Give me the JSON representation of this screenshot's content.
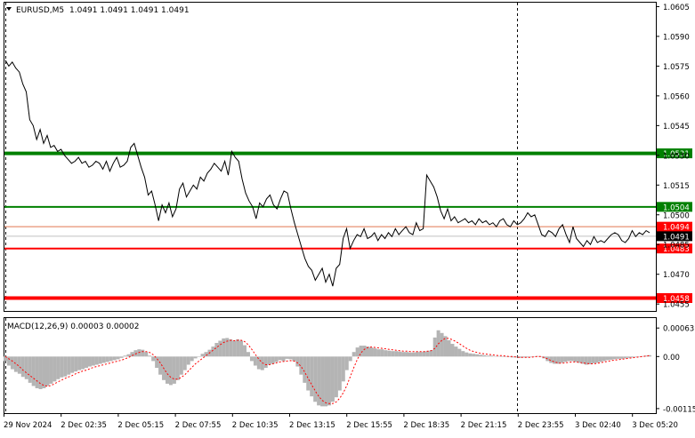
{
  "header": {
    "symbol": "EURUSD,M5",
    "ohlc": "1.0491 1.0491 1.0491 1.0491"
  },
  "colors": {
    "price_line": "#000000",
    "grid": "#c8c8c8",
    "resistance": "#008000",
    "support": "#ff0000",
    "bid_line": "#c0c0c0",
    "ask_line": "#e07850",
    "histogram": "#b4b4b4",
    "signal": "#ff0000",
    "axis_text": "#000000"
  },
  "chart_data": [
    {
      "type": "line",
      "panel": "price",
      "ylim": [
        1.04515,
        1.0607
      ],
      "y_ticks": [
        "1.0605",
        "1.0590",
        "1.0575",
        "1.0560",
        "1.0545",
        "1.0530",
        "1.0515",
        "1.0500",
        "1.0485",
        "1.0470",
        "1.0455"
      ],
      "x_tick_labels": [
        "29 Nov 2024",
        "2 Dec 02:35",
        "2 Dec 05:15",
        "2 Dec 07:55",
        "2 Dec 10:35",
        "2 Dec 13:15",
        "2 Dec 15:55",
        "2 Dec 18:35",
        "2 Dec 21:15",
        "2 Dec 23:55",
        "3 Dec 02:40",
        "3 Dec 05:20"
      ],
      "period_separators": [
        "2 Dec 00:00",
        "3 Dec 00:00"
      ],
      "series": [
        {
          "values": [
            1.0578,
            1.0575,
            1.0577,
            1.0574,
            1.0572,
            1.0566,
            1.0562,
            1.0548,
            1.0545,
            1.0538,
            1.0543,
            1.0536,
            1.054,
            1.0534,
            1.0535,
            1.0532,
            1.0533,
            1.053,
            1.0528,
            1.0526,
            1.0527,
            1.0529,
            1.0526,
            1.0527,
            1.0524,
            1.0525,
            1.0527,
            1.0526,
            1.0523,
            1.0527,
            1.0522,
            1.0526,
            1.0529,
            1.0524,
            1.0525,
            1.0527,
            1.0534,
            1.0536,
            1.053,
            1.0524,
            1.0519,
            1.051,
            1.0512,
            1.0505,
            1.0497,
            1.0505,
            1.0501,
            1.0506,
            1.0499,
            1.0503,
            1.0513,
            1.0516,
            1.0509,
            1.0512,
            1.0515,
            1.0513,
            1.0519,
            1.0517,
            1.0521,
            1.0523,
            1.0526,
            1.0524,
            1.0522,
            1.0527,
            1.052,
            1.0532,
            1.0529,
            1.0527,
            1.0518,
            1.0511,
            1.0507,
            1.0504,
            1.0498,
            1.0506,
            1.0504,
            1.0508,
            1.051,
            1.0505,
            1.0503,
            1.0508,
            1.0512,
            1.0511,
            1.0503,
            1.0496,
            1.049,
            1.0484,
            1.0478,
            1.0474,
            1.0472,
            1.0467,
            1.047,
            1.0473,
            1.0466,
            1.047,
            1.0464,
            1.0473,
            1.0475,
            1.0488,
            1.0493,
            1.0483,
            1.0487,
            1.049,
            1.0489,
            1.0493,
            1.0488,
            1.0489,
            1.0491,
            1.0487,
            1.049,
            1.0488,
            1.0491,
            1.0489,
            1.0493,
            1.049,
            1.0492,
            1.0494,
            1.0491,
            1.049,
            1.0496,
            1.0492,
            1.0493,
            1.052,
            1.0517,
            1.0514,
            1.0509,
            1.0502,
            1.0498,
            1.0503,
            1.0497,
            1.0499,
            1.0496,
            1.0497,
            1.0498,
            1.0496,
            1.0497,
            1.0495,
            1.0498,
            1.0496,
            1.0497,
            1.0495,
            1.0496,
            1.0494,
            1.0497,
            1.0498,
            1.0495,
            1.0494,
            1.0497,
            1.0495,
            1.0496,
            1.0498,
            1.0501,
            1.0499,
            1.05,
            1.0495,
            1.049,
            1.0489,
            1.0492,
            1.0491,
            1.0489,
            1.0493,
            1.0495,
            1.049,
            1.0486,
            1.0494,
            1.0488,
            1.0486,
            1.0484,
            1.0487,
            1.0485,
            1.0489,
            1.0486,
            1.0487,
            1.0486,
            1.0488,
            1.049,
            1.0491,
            1.049,
            1.0487,
            1.0486,
            1.0488,
            1.0492,
            1.0489,
            1.0491,
            1.049,
            1.0492,
            1.0491
          ]
        }
      ],
      "levels": [
        {
          "label": "1.0531",
          "value": 1.0531,
          "color": "#008000",
          "width": 4
        },
        {
          "label": "1.0504",
          "value": 1.0504,
          "color": "#008000",
          "width": 2
        },
        {
          "label": "1.0483",
          "value": 1.0483,
          "color": "#ff0000",
          "width": 2
        },
        {
          "label": "1.0458",
          "value": 1.0458,
          "color": "#ff0000",
          "width": 4
        }
      ],
      "ask_label": "1.0494",
      "ask_value": 1.0494,
      "bid_label": "1.0491",
      "bid_value": 1.0491
    },
    {
      "type": "bar",
      "panel": "macd",
      "title": "MACD(12,26,9) 0.00003 0.00002",
      "ylim": [
        -0.00125,
        0.00085
      ],
      "y_ticks": [
        "0.00063",
        "0.00",
        "-0.00115"
      ],
      "series": [
        {
          "type": "bar",
          "values": [
            -0.0001,
            -0.0002,
            -0.00028,
            -0.00034,
            -0.00038,
            -0.00045,
            -0.0005,
            -0.00058,
            -0.00065,
            -0.0007,
            -0.00072,
            -0.0007,
            -0.00065,
            -0.0006,
            -0.00055,
            -0.0005,
            -0.00046,
            -0.00044,
            -0.0004,
            -0.00036,
            -0.00033,
            -0.0003,
            -0.00028,
            -0.00025,
            -0.00022,
            -0.0002,
            -0.00018,
            -0.00016,
            -0.00014,
            -0.00012,
            -0.0001,
            -8e-05,
            -6e-05,
            -3e-05,
            2e-05,
            5e-05,
            0.0001,
            0.00014,
            0.00016,
            0.00015,
            0.0001,
            2e-05,
            -0.0001,
            -0.00025,
            -0.0004,
            -0.00052,
            -0.0006,
            -0.00063,
            -0.0006,
            -0.00052,
            -0.0004,
            -0.0003,
            -0.00018,
            -0.0001,
            -4e-05,
            0,
            6e-05,
            0.0001,
            0.00015,
            0.00022,
            0.0003,
            0.00035,
            0.0004,
            0.00041,
            0.00038,
            0.00035,
            0.00038,
            0.00035,
            0.00025,
            0.0001,
            -0.0001,
            -0.0002,
            -0.00028,
            -0.0003,
            -0.00025,
            -0.00018,
            -0.00016,
            -0.00012,
            -8e-05,
            -0.0001,
            -5e-05,
            -6e-05,
            -0.0001,
            -0.00022,
            -0.0004,
            -0.00058,
            -0.00075,
            -0.00088,
            -0.001,
            -0.00108,
            -0.0011,
            -0.0011,
            -0.00108,
            -0.001,
            -0.0009,
            -0.00075,
            -0.00055,
            -0.0003,
            -0.0001,
            0.0001,
            0.0002,
            0.00024,
            0.00024,
            0.00022,
            0.0002,
            0.00018,
            0.00016,
            0.00016,
            0.00014,
            0.00013,
            0.00012,
            0.00012,
            0.00011,
            0.0001,
            0.0001,
            9e-05,
            9e-05,
            0.0001,
            0.0001,
            0.00011,
            0.00012,
            0.00014,
            0.00042,
            0.00058,
            0.00052,
            0.00045,
            0.00036,
            0.00028,
            0.00022,
            0.00017,
            0.00012,
            9e-05,
            7e-05,
            6e-05,
            5e-05,
            4e-05,
            3e-05,
            2e-05,
            2e-05,
            1e-05,
            1e-05,
            0,
            0,
            -1e-05,
            -2e-05,
            -2e-05,
            -3e-05,
            -2e-05,
            -2e-05,
            -1e-05,
            0,
            1e-05,
            0,
            -4e-05,
            -0.0001,
            -0.00014,
            -0.00016,
            -0.00016,
            -0.00014,
            -0.00012,
            -0.0001,
            -0.0001,
            -0.00012,
            -0.00014,
            -0.00016,
            -0.00018,
            -0.00017,
            -0.00015,
            -0.00014,
            -0.00012,
            -0.0001,
            -8e-05,
            -7e-05,
            -6e-05,
            -5e-05,
            -5e-05,
            -4e-05,
            -3e-05,
            -2e-05,
            -1e-05,
            0,
            1e-05,
            2e-05,
            3e-05
          ]
        },
        {
          "type": "line",
          "values": [
            0,
            -5e-05,
            -0.0001,
            -0.00016,
            -0.00022,
            -0.0003,
            -0.00036,
            -0.00042,
            -0.00048,
            -0.00054,
            -0.0006,
            -0.00064,
            -0.00066,
            -0.00064,
            -0.0006,
            -0.00056,
            -0.00052,
            -0.00048,
            -0.00045,
            -0.00042,
            -0.00038,
            -0.00035,
            -0.00032,
            -0.0003,
            -0.00027,
            -0.00024,
            -0.00022,
            -0.0002,
            -0.00018,
            -0.00016,
            -0.00014,
            -0.00012,
            -0.0001,
            -8e-05,
            -5e-05,
            -2e-05,
            2e-05,
            6e-05,
            9e-05,
            0.00011,
            0.00011,
            9e-05,
            4e-05,
            -4e-05,
            -0.00014,
            -0.00026,
            -0.00038,
            -0.00046,
            -0.0005,
            -0.0005,
            -0.00046,
            -0.0004,
            -0.00032,
            -0.00024,
            -0.00016,
            -0.0001,
            -4e-05,
            2e-05,
            8e-05,
            0.00014,
            0.0002,
            0.00026,
            0.00031,
            0.00034,
            0.00036,
            0.00035,
            0.00036,
            0.00036,
            0.00033,
            0.00026,
            0.00016,
            5e-05,
            -6e-05,
            -0.00014,
            -0.00018,
            -0.00018,
            -0.00016,
            -0.00014,
            -0.00012,
            -0.00011,
            -0.0001,
            -9e-05,
            -0.0001,
            -0.00014,
            -0.00022,
            -0.00034,
            -0.00048,
            -0.00062,
            -0.00076,
            -0.00088,
            -0.00097,
            -0.00102,
            -0.00104,
            -0.00104,
            -0.001,
            -0.00092,
            -0.0008,
            -0.00064,
            -0.00044,
            -0.00024,
            -6e-05,
            8e-05,
            0.00016,
            0.0002,
            0.00021,
            0.0002,
            0.00019,
            0.00018,
            0.00017,
            0.00016,
            0.00015,
            0.00014,
            0.00013,
            0.00012,
            0.00012,
            0.00011,
            0.00011,
            0.00011,
            0.00011,
            0.00011,
            0.00012,
            0.00013,
            0.00018,
            0.00028,
            0.00036,
            0.0004,
            0.0004,
            0.00037,
            0.00033,
            0.00028,
            0.00023,
            0.00018,
            0.00014,
            0.00011,
            9e-05,
            7e-05,
            6e-05,
            5e-05,
            4e-05,
            3e-05,
            2e-05,
            2e-05,
            1e-05,
            0,
            0,
            -1e-05,
            -2e-05,
            -2e-05,
            -2e-05,
            -2e-05,
            -1e-05,
            0,
            0,
            -2e-05,
            -5e-05,
            -9e-05,
            -0.00012,
            -0.00014,
            -0.00015,
            -0.00014,
            -0.00013,
            -0.00012,
            -0.00012,
            -0.00013,
            -0.00014,
            -0.00015,
            -0.00016,
            -0.00016,
            -0.00015,
            -0.00014,
            -0.00012,
            -0.00011,
            -9e-05,
            -8e-05,
            -7e-05,
            -6e-05,
            -5e-05,
            -4e-05,
            -3e-05,
            -2e-05,
            -1e-05,
            0,
            1e-05,
            2e-05
          ]
        }
      ]
    }
  ]
}
